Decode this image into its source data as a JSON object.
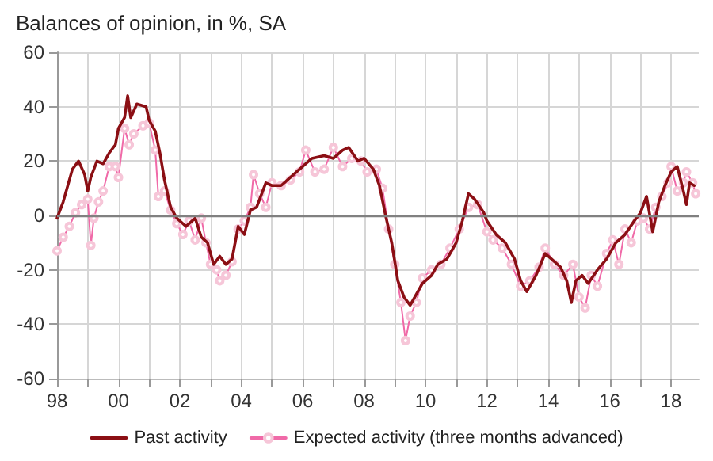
{
  "chart_data": {
    "type": "line",
    "title": "Balances of opinion, in %, SA",
    "xlim": [
      1998,
      2018.9
    ],
    "xticks": [
      {
        "value": 1998,
        "label": "98"
      },
      {
        "value": 1999,
        "label": null
      },
      {
        "value": 2000,
        "label": "00"
      },
      {
        "value": 2001,
        "label": null
      },
      {
        "value": 2002,
        "label": "02"
      },
      {
        "value": 2003,
        "label": null
      },
      {
        "value": 2004,
        "label": "04"
      },
      {
        "value": 2005,
        "label": null
      },
      {
        "value": 2006,
        "label": "06"
      },
      {
        "value": 2007,
        "label": null
      },
      {
        "value": 2008,
        "label": "08"
      },
      {
        "value": 2009,
        "label": null
      },
      {
        "value": 2010,
        "label": "10"
      },
      {
        "value": 2011,
        "label": null
      },
      {
        "value": 2012,
        "label": "12"
      },
      {
        "value": 2013,
        "label": null
      },
      {
        "value": 2014,
        "label": "14"
      },
      {
        "value": 2015,
        "label": null
      },
      {
        "value": 2016,
        "label": "16"
      },
      {
        "value": 2017,
        "label": null
      },
      {
        "value": 2018,
        "label": "18"
      }
    ],
    "ylim": [
      -60,
      60
    ],
    "yticks": [
      -60,
      -40,
      -20,
      0,
      20,
      40,
      60
    ],
    "grid": true,
    "legend": "bottom",
    "line_style": "solid",
    "ref_lines": [
      {
        "axis": "y",
        "value": 0,
        "color": "#808080"
      }
    ],
    "series": [
      {
        "name": "Past activity",
        "color": "#8b0f14",
        "marker": "none",
        "x": [
          1998.0,
          1998.2,
          1998.5,
          1998.7,
          1998.9,
          1999.0,
          1999.1,
          1999.3,
          1999.5,
          1999.7,
          1999.9,
          2000.0,
          2000.2,
          2000.3,
          2000.4,
          2000.6,
          2000.9,
          2001.0,
          2001.2,
          2001.35,
          2001.5,
          2001.7,
          2001.9,
          2002.2,
          2002.5,
          2002.7,
          2002.9,
          2003.1,
          2003.3,
          2003.5,
          2003.7,
          2003.9,
          2004.1,
          2004.3,
          2004.5,
          2004.8,
          2005.0,
          2005.3,
          2005.6,
          2006.0,
          2006.3,
          2006.7,
          2007.0,
          2007.3,
          2007.5,
          2007.8,
          2008.0,
          2008.3,
          2008.5,
          2008.7,
          2008.9,
          2009.1,
          2009.3,
          2009.5,
          2009.7,
          2009.9,
          2010.2,
          2010.4,
          2010.7,
          2011.0,
          2011.2,
          2011.4,
          2011.6,
          2011.9,
          2012.0,
          2012.3,
          2012.6,
          2012.9,
          2013.1,
          2013.3,
          2013.6,
          2013.9,
          2014.1,
          2014.4,
          2014.6,
          2014.75,
          2014.9,
          2015.1,
          2015.3,
          2015.6,
          2015.9,
          2016.2,
          2016.5,
          2016.8,
          2017.0,
          2017.2,
          2017.4,
          2017.6,
          2017.8,
          2018.0,
          2018.2,
          2018.4,
          2018.5,
          2018.6,
          2018.75
        ],
        "values": [
          -1,
          5,
          17,
          20,
          15,
          9,
          14,
          20,
          19,
          23,
          26,
          32,
          36,
          44,
          36,
          41,
          40,
          35,
          31,
          23,
          13,
          3,
          -1,
          -4,
          -1,
          -8,
          -10,
          -18,
          -15,
          -18,
          -16,
          -4,
          -7,
          2,
          3,
          12,
          11,
          11,
          14,
          18,
          21,
          22,
          21,
          24,
          25,
          20,
          21,
          17,
          11,
          0,
          -10,
          -24,
          -30,
          -33,
          -29,
          -25,
          -22,
          -18,
          -16,
          -10,
          -2,
          8,
          6,
          1,
          -2,
          -7,
          -10,
          -16,
          -24,
          -28,
          -22,
          -14,
          -16,
          -19,
          -24,
          -32,
          -24,
          -22,
          -25,
          -20,
          -16,
          -10,
          -7,
          -2,
          1,
          7,
          -6,
          5,
          11,
          16,
          18,
          9,
          4,
          12,
          11
        ]
      },
      {
        "name": "Expected activity (three months advanced)",
        "color": "#f06aa8",
        "marker": "circle",
        "x": [
          1998.0,
          1998.2,
          1998.4,
          1998.6,
          1998.8,
          1999.0,
          1999.1,
          1999.2,
          1999.35,
          1999.5,
          1999.7,
          1999.9,
          2000.0,
          2000.2,
          2000.35,
          2000.5,
          2000.8,
          2001.0,
          2001.2,
          2001.3,
          2001.5,
          2001.7,
          2001.9,
          2002.1,
          2002.3,
          2002.5,
          2002.7,
          2002.85,
          2003.0,
          2003.2,
          2003.3,
          2003.5,
          2003.7,
          2003.9,
          2004.1,
          2004.3,
          2004.4,
          2004.6,
          2004.8,
          2005.0,
          2005.3,
          2005.6,
          2005.9,
          2006.1,
          2006.4,
          2006.7,
          2007.0,
          2007.3,
          2007.6,
          2007.9,
          2008.1,
          2008.4,
          2008.6,
          2008.8,
          2009.0,
          2009.2,
          2009.35,
          2009.5,
          2009.7,
          2009.9,
          2010.2,
          2010.5,
          2010.8,
          2011.1,
          2011.4,
          2011.7,
          2012.0,
          2012.2,
          2012.5,
          2012.8,
          2013.1,
          2013.4,
          2013.7,
          2013.9,
          2014.2,
          2014.5,
          2014.8,
          2015.0,
          2015.2,
          2015.4,
          2015.6,
          2015.9,
          2016.1,
          2016.3,
          2016.5,
          2016.7,
          2016.9,
          2017.1,
          2017.3,
          2017.5,
          2017.7,
          2017.9,
          2018.0,
          2018.2,
          2018.4,
          2018.5,
          2018.7,
          2018.8
        ],
        "values": [
          -13,
          -8,
          -4,
          1,
          4,
          6,
          -11,
          -1,
          5,
          9,
          18,
          18,
          14,
          32,
          26,
          30,
          33,
          34,
          24,
          7,
          9,
          2,
          -3,
          -7,
          -2,
          -9,
          -1,
          -10,
          -18,
          -20,
          -24,
          -22,
          -17,
          -5,
          -2,
          3,
          15,
          8,
          3,
          12,
          11,
          13,
          16,
          24,
          16,
          17,
          25,
          18,
          21,
          20,
          16,
          17,
          10,
          -5,
          -18,
          -32,
          -46,
          -37,
          -32,
          -23,
          -20,
          -18,
          -12,
          -5,
          3,
          4,
          -6,
          -9,
          -12,
          -18,
          -26,
          -24,
          -19,
          -12,
          -18,
          -22,
          -18,
          -30,
          -34,
          -22,
          -26,
          -14,
          -9,
          -18,
          -5,
          -10,
          -2,
          -1,
          -5,
          3,
          7,
          12,
          18,
          9,
          12,
          16,
          12,
          8
        ]
      }
    ]
  }
}
